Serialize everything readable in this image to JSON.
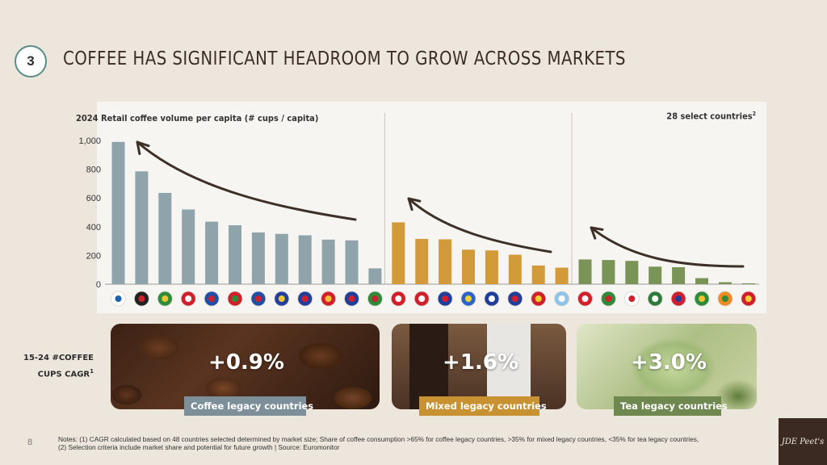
{
  "section_number": "3",
  "title": "COFFEE HAS SIGNIFICANT HEADROOM TO GROW ACROSS MARKETS",
  "chart_data": {
    "type": "bar",
    "title": "2024 Retail coffee volume per capita (# cups / capita)",
    "note": "28 select countries",
    "note_sup": "2",
    "yticks": [
      "1,000",
      "800",
      "600",
      "400",
      "200",
      "0"
    ],
    "ylim": [
      0,
      1000
    ],
    "grid": false,
    "categories": [
      "Finland",
      "Germany",
      "Brazil",
      "Indonesia",
      "France",
      "Hungary",
      "Philippines",
      "Malaysia",
      "United States",
      "Spain",
      "Thailand",
      "Mexico",
      "Poland",
      "Canada",
      "Australia",
      "Ukraine",
      "Russia",
      "United Kingdom",
      "Vietnam",
      "Argentina",
      "Turkey",
      "UAE",
      "Japan",
      "Saudi Arabia",
      "Chile",
      "South Africa",
      "India",
      "China"
    ],
    "groups": [
      {
        "name": "Coffee legacy countries",
        "color": "#8fa3aa",
        "start": 0,
        "end": 11
      },
      {
        "name": "Mixed legacy countries",
        "color": "#d39a3a",
        "start": 12,
        "end": 19
      },
      {
        "name": "Tea legacy countries",
        "color": "#7a9457",
        "start": 20,
        "end": 27
      }
    ],
    "values": [
      990,
      785,
      635,
      520,
      435,
      410,
      360,
      350,
      340,
      310,
      305,
      110,
      430,
      315,
      312,
      240,
      235,
      205,
      130,
      115,
      172,
      168,
      162,
      122,
      118,
      42,
      14,
      6
    ]
  },
  "cagr": {
    "label_line1": "15-24 #COFFEE",
    "label_line2": "CUPS CAGR",
    "label_sup": "1",
    "cards": [
      {
        "value": "+0.9%",
        "tag": "Coffee legacy countries",
        "tag_color": "#7d9099"
      },
      {
        "value": "+1.6%",
        "tag": "Mixed legacy countries",
        "tag_color": "#c89232"
      },
      {
        "value": "+3.0%",
        "tag": "Tea legacy countries",
        "tag_color": "#6f8850"
      }
    ]
  },
  "footer": {
    "page_number": "8",
    "notes_line1": "Notes: (1) CAGR calculated based on 48 countries selected determined by market size; Share of coffee consumption >65% for coffee legacy countries, >35% for mixed legacy countries, <35% for tea legacy countries,",
    "notes_line2": "(2) Selection criteria include market share and potential for future growth | Source: Euromonitor",
    "brand": "JDE Peet's"
  }
}
